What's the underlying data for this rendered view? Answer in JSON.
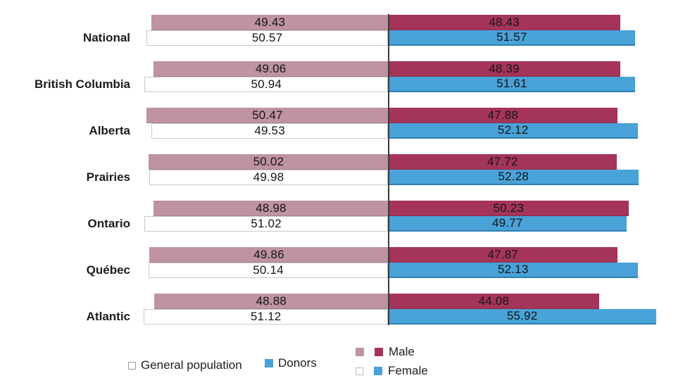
{
  "chart_data": {
    "type": "bar",
    "variant": "horizontal-diverging-paired",
    "categories": [
      "National",
      "British Columbia",
      "Alberta",
      "Prairies",
      "Ontario",
      "Québec",
      "Atlantic"
    ],
    "series": [
      {
        "key": "general_male",
        "name": "General population – Male",
        "side": "left",
        "values": [
          49.43,
          49.06,
          50.47,
          50.02,
          48.98,
          49.86,
          48.88
        ]
      },
      {
        "key": "general_female",
        "name": "General population – Female",
        "side": "left",
        "values": [
          50.57,
          50.94,
          49.53,
          49.98,
          51.02,
          50.14,
          51.12
        ]
      },
      {
        "key": "donor_male",
        "name": "Donors – Male",
        "side": "right",
        "values": [
          48.43,
          48.39,
          47.88,
          47.72,
          50.23,
          47.87,
          44.08
        ]
      },
      {
        "key": "donor_female",
        "name": "Donors – Female",
        "side": "right",
        "values": [
          51.57,
          51.61,
          52.12,
          52.28,
          49.77,
          52.13,
          55.92
        ]
      }
    ],
    "title": "",
    "xlabel": "",
    "ylabel": "",
    "value_labels_on_bars": true,
    "grid": false,
    "legend_position": "bottom"
  },
  "legend": {
    "general_population": "General population",
    "donors": "Donors",
    "male": "Male",
    "female": "Female"
  },
  "colors": {
    "general_male": "#bf93a0",
    "general_female": "#ffffff",
    "donor_male": "#a43459",
    "donor_female": "#49a2d8",
    "white_bar_border": "#c9c9c9",
    "axis_line": "#3a3a3a"
  }
}
